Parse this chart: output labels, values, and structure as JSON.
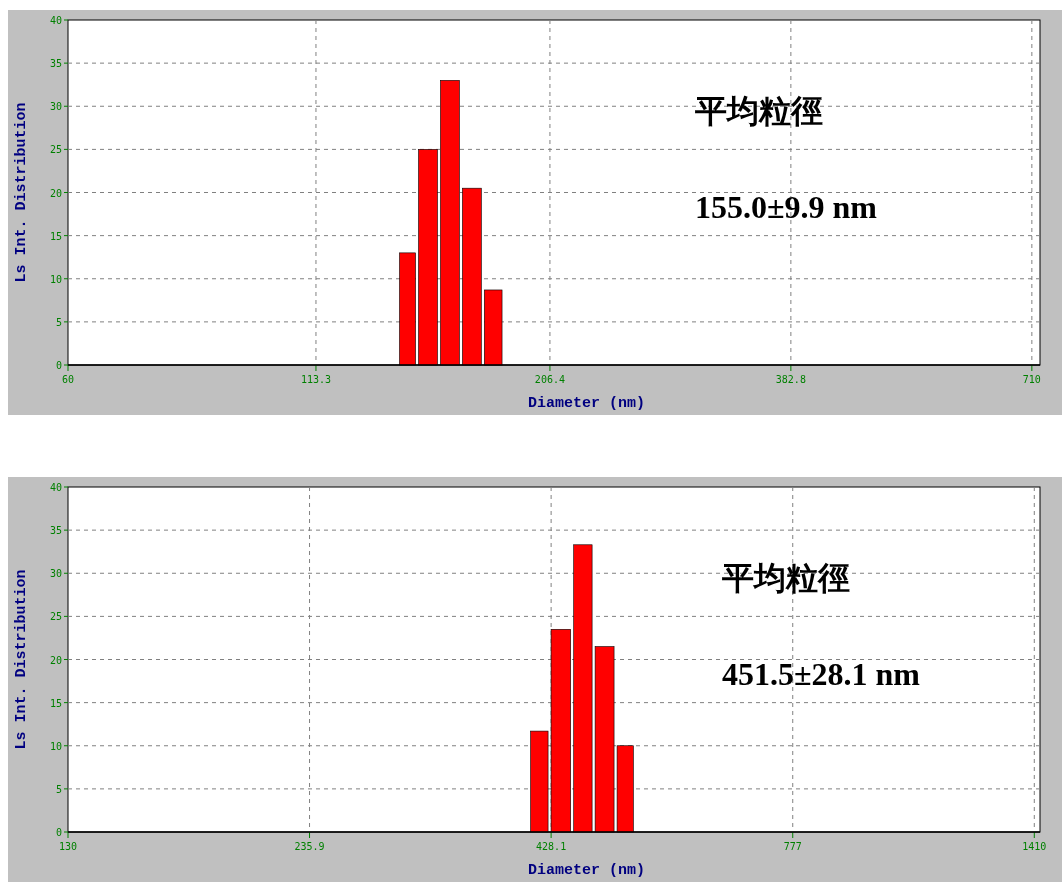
{
  "chart_data": [
    {
      "type": "histogram",
      "xlabel": "Diameter (nm)",
      "ylabel": "Ls Int. Distribution",
      "log": "x",
      "bins": [
        140,
        147,
        155.5,
        164.5,
        174,
        183.5
      ],
      "values": [
        13,
        25,
        33,
        20.5,
        8.7
      ],
      "color": "#ff0000",
      "xlim": [
        60,
        725
      ],
      "xticks": [
        60,
        113.3,
        206.4,
        382.8,
        710
      ],
      "ylim": [
        0,
        40
      ],
      "yticks": [
        0,
        5,
        10,
        15,
        20,
        25,
        30,
        35,
        40
      ],
      "grid": true,
      "annotations": [
        "平均粒徑",
        "155.0±9.9 nm"
      ]
    },
    {
      "type": "histogram",
      "xlabel": "Diameter (nm)",
      "ylabel": "Ls Int. Distribution",
      "log": "x",
      "bins": [
        406,
        427,
        451.5,
        476,
        502.5,
        527
      ],
      "values": [
        11.7,
        23.5,
        33.3,
        21.5,
        10
      ],
      "color": "#ff0000",
      "xlim": [
        130,
        1430
      ],
      "xticks": [
        130,
        235.9,
        428.1,
        777,
        1410
      ],
      "ylim": [
        0,
        40
      ],
      "yticks": [
        0,
        5,
        10,
        15,
        20,
        25,
        30,
        35,
        40
      ],
      "grid": true,
      "annotations": [
        "平均粒徑",
        "451.5±28.1 nm"
      ]
    }
  ]
}
